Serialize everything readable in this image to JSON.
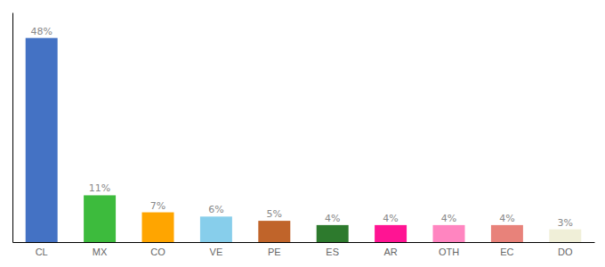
{
  "chart_data": {
    "type": "bar",
    "categories": [
      "CL",
      "MX",
      "CO",
      "VE",
      "PE",
      "ES",
      "AR",
      "OTH",
      "EC",
      "DO"
    ],
    "values": [
      48,
      11,
      7,
      6,
      5,
      4,
      4,
      4,
      4,
      3
    ],
    "value_labels": [
      "48%",
      "11%",
      "7%",
      "6%",
      "5%",
      "4%",
      "4%",
      "4%",
      "4%",
      "3%"
    ],
    "colors": [
      "#4472C4",
      "#3DBB3D",
      "#FFA500",
      "#87CEEB",
      "#C0642A",
      "#2D7A2D",
      "#FF1493",
      "#FF85C0",
      "#E8827A",
      "#F0EFD8"
    ],
    "ylim": [
      0,
      54
    ],
    "data_labels": true,
    "tick_labels": "x",
    "grid": false
  }
}
